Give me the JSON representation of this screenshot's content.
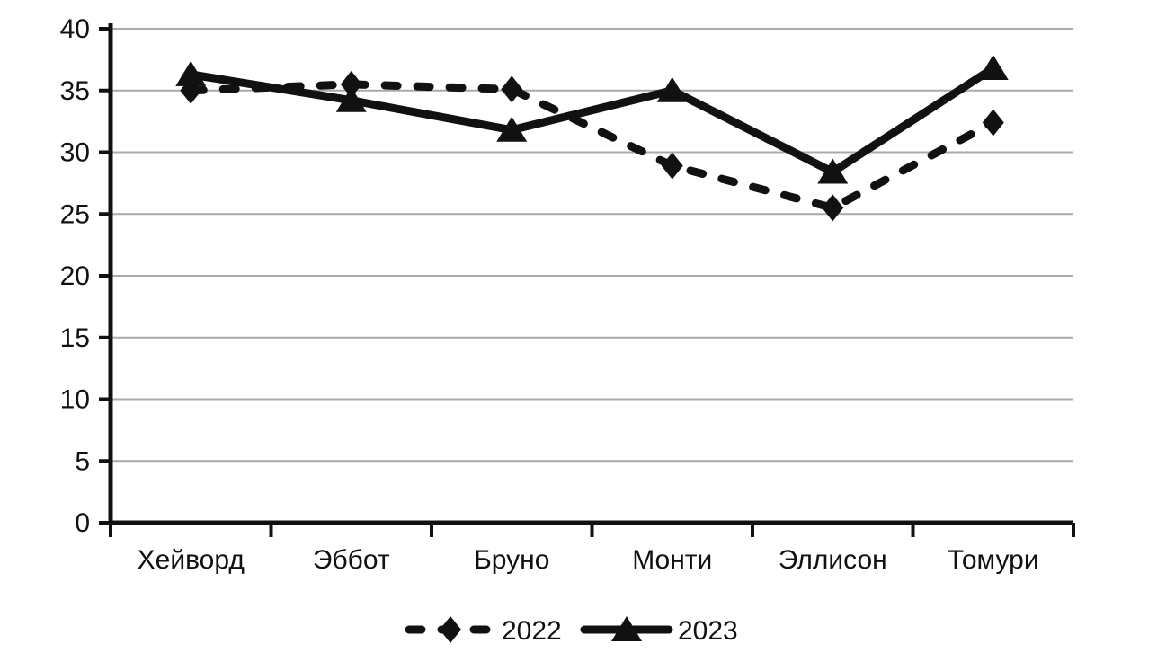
{
  "chart_data": {
    "type": "line",
    "title": "",
    "xlabel": "",
    "ylabel": "",
    "categories": [
      "Хейворд",
      "Эббот",
      "Бруно",
      "Монти",
      "Эллисон",
      "Томури"
    ],
    "series": [
      {
        "name": "2022",
        "line_style": "dashed",
        "marker": "diamond",
        "values": [
          35,
          35.5,
          35.1,
          28.9,
          25.5,
          32.4
        ]
      },
      {
        "name": "2023",
        "line_style": "solid",
        "marker": "triangle",
        "values": [
          36.3,
          34.2,
          31.8,
          35.0,
          28.4,
          36.8
        ]
      }
    ],
    "ylim": [
      0,
      40
    ],
    "yticks": [
      0,
      5,
      10,
      15,
      20,
      25,
      30,
      35,
      40
    ],
    "grid": true,
    "legend_position": "bottom-center",
    "colors": {
      "series": "#111111",
      "axis": "#111111",
      "gridline": "#a9a9a9",
      "background": "#ffffff"
    }
  }
}
